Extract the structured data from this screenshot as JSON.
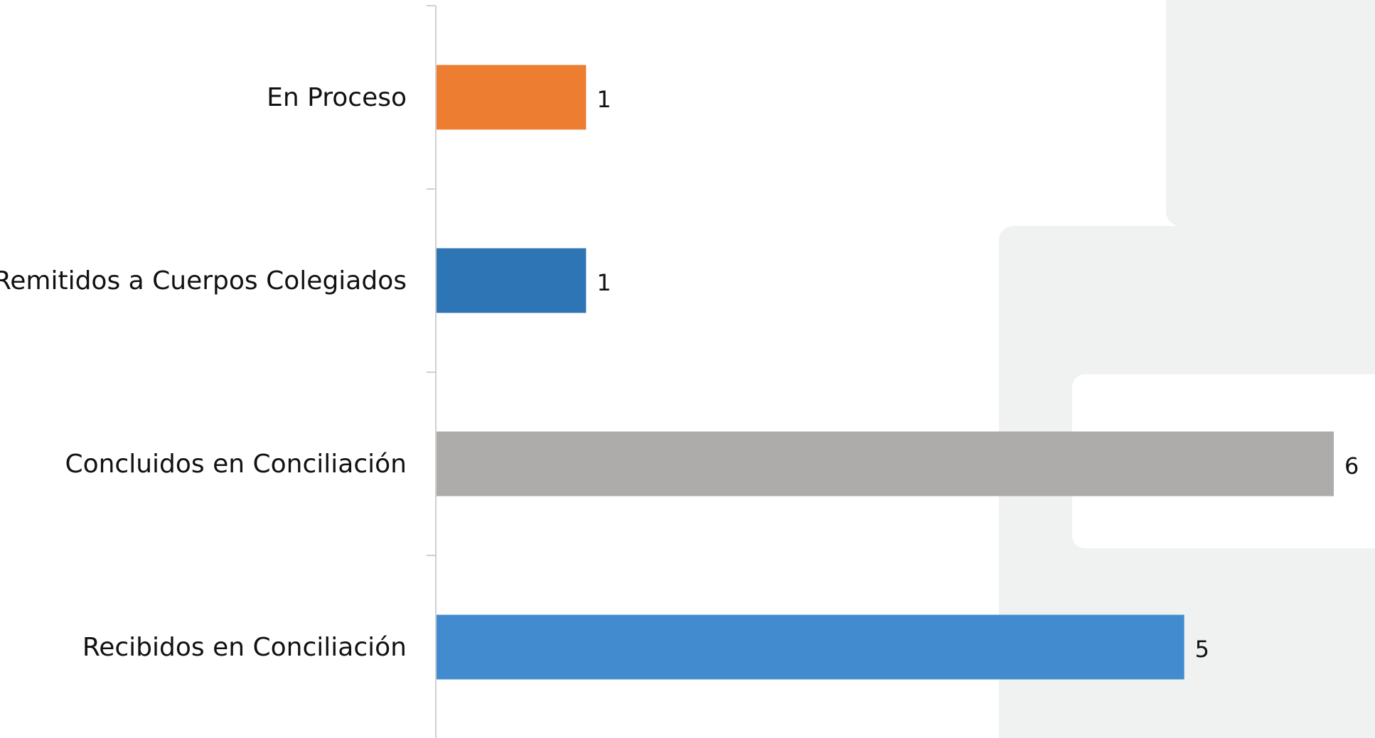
{
  "chart_data": {
    "type": "bar",
    "orientation": "horizontal",
    "categories": [
      "En Proceso",
      "Remitidos a Cuerpos Colegiados",
      "Concluidos en Conciliación",
      "Recibidos en Conciliación"
    ],
    "values": [
      1,
      1,
      6,
      5
    ],
    "colors": [
      "#ED7D31",
      "#2E75B6",
      "#AEABAB",
      "#418BCE"
    ],
    "xlim": [
      0,
      6
    ],
    "data_labels": true,
    "grid": false,
    "legend": "none"
  },
  "background": {
    "page_color": "#FFFFFF",
    "panel_color": "#F0F2F2"
  }
}
